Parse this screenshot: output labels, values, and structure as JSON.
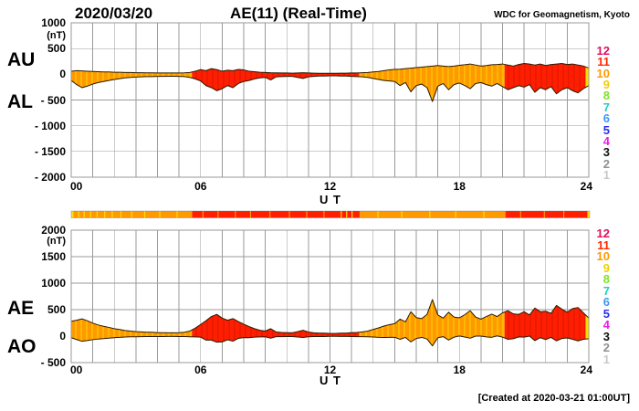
{
  "header": {
    "date": "2020/03/20",
    "title": "AE(11) (Real-Time)",
    "credit": "WDC for Geomagnetism, Kyoto"
  },
  "footer": {
    "created_note": "[Created at 2020-03-21 01:00UT]"
  },
  "palette": {
    "orange": "#ff9900",
    "red": "#ff1e00",
    "yellow": "#ffdf00",
    "orange_streak": "#ffd800",
    "red_streak": "#d81500",
    "outline": "#2b1a00",
    "grid": "#9a9a9a",
    "text": "#000000"
  },
  "legend_station_counts": {
    "entries": [
      {
        "label": "12",
        "color": "#e0105f"
      },
      {
        "label": "11",
        "color": "#ff2a00"
      },
      {
        "label": "10",
        "color": "#ff9900"
      },
      {
        "label": "9",
        "color": "#f0d000"
      },
      {
        "label": "8",
        "color": "#7de32b"
      },
      {
        "label": "7",
        "color": "#1ecfc0"
      },
      {
        "label": "6",
        "color": "#3b97f5"
      },
      {
        "label": "5",
        "color": "#2b2bf0"
      },
      {
        "label": "4",
        "color": "#e81ee8"
      },
      {
        "label": "3",
        "color": "#101010"
      },
      {
        "label": "2",
        "color": "#909090"
      },
      {
        "label": "1",
        "color": "#c8c8c8"
      }
    ]
  },
  "top_panel": {
    "side_labels": [
      "AU",
      "AL"
    ],
    "unit": "(nT)",
    "xlabel": "U T",
    "yticks": [
      {
        "label": "1000",
        "value": 1000
      },
      {
        "label": "500",
        "value": 500
      },
      {
        "label": "0",
        "value": 0
      },
      {
        "label": "- 500",
        "value": -500
      },
      {
        "label": "- 1000",
        "value": -1000
      },
      {
        "label": "- 1500",
        "value": -1500
      },
      {
        "label": "- 2000",
        "value": -2000
      }
    ],
    "xticks": [
      {
        "label": "00",
        "hour": 0
      },
      {
        "label": "06",
        "hour": 6
      },
      {
        "label": "12",
        "hour": 12
      },
      {
        "label": "18",
        "hour": 18
      },
      {
        "label": "24",
        "hour": 24
      }
    ]
  },
  "bottom_panel": {
    "side_labels": [
      "AE",
      "AO"
    ],
    "unit": "(nT)",
    "xlabel": "U T",
    "yticks": [
      {
        "label": "2000",
        "value": 2000
      },
      {
        "label": "1500",
        "value": 1500
      },
      {
        "label": "1000",
        "value": 1000
      },
      {
        "label": "500",
        "value": 500
      },
      {
        "label": "0",
        "value": 0
      },
      {
        "label": "- 500",
        "value": -500
      }
    ],
    "xticks": [
      {
        "label": "00",
        "hour": 0
      },
      {
        "label": "06",
        "hour": 6
      },
      {
        "label": "12",
        "hour": 12
      },
      {
        "label": "18",
        "hour": 18
      },
      {
        "label": "24",
        "hour": 24
      }
    ]
  },
  "chart_data": [
    {
      "type": "area",
      "name": "AU-AL",
      "xlabel": "U T",
      "ylabel": "(nT)",
      "ylim": [
        -2000,
        1000
      ],
      "x": {
        "start": 0,
        "step": 0.25,
        "count": 97,
        "unit": "hour"
      },
      "series": [
        {
          "name": "AU",
          "values": [
            60,
            70,
            65,
            60,
            55,
            50,
            45,
            45,
            40,
            40,
            35,
            35,
            30,
            30,
            28,
            28,
            25,
            25,
            25,
            25,
            25,
            28,
            35,
            60,
            90,
            70,
            110,
            90,
            60,
            80,
            70,
            95,
            85,
            60,
            50,
            40,
            35,
            30,
            28,
            25,
            25,
            22,
            25,
            30,
            25,
            22,
            20,
            20,
            20,
            20,
            22,
            22,
            25,
            25,
            30,
            35,
            45,
            55,
            70,
            85,
            95,
            100,
            110,
            120,
            130,
            140,
            150,
            160,
            170,
            160,
            150,
            160,
            175,
            185,
            200,
            180,
            160,
            170,
            185,
            190,
            200,
            180,
            160,
            190,
            210,
            200,
            180,
            200,
            170,
            190,
            200,
            210,
            190,
            200,
            180,
            160,
            120
          ]
        },
        {
          "name": "AL",
          "values": [
            -120,
            -200,
            -260,
            -230,
            -190,
            -160,
            -140,
            -120,
            -100,
            -85,
            -70,
            -60,
            -55,
            -50,
            -45,
            -45,
            -40,
            -40,
            -38,
            -38,
            -40,
            -45,
            -60,
            -90,
            -130,
            -220,
            -260,
            -320,
            -280,
            -220,
            -260,
            -180,
            -140,
            -120,
            -90,
            -70,
            -60,
            -110,
            -50,
            -45,
            -40,
            -40,
            -60,
            -80,
            -50,
            -40,
            -35,
            -35,
            -30,
            -30,
            -35,
            -35,
            -40,
            -45,
            -50,
            -60,
            -80,
            -100,
            -120,
            -130,
            -140,
            -220,
            -160,
            -340,
            -220,
            -190,
            -260,
            -530,
            -230,
            -180,
            -300,
            -200,
            -170,
            -220,
            -280,
            -180,
            -160,
            -200,
            -230,
            -180,
            -240,
            -300,
            -260,
            -220,
            -250,
            -200,
            -350,
            -260,
            -300,
            -240,
            -380,
            -300,
            -260,
            -320,
            -360,
            -280,
            -220
          ]
        }
      ],
      "color_segments": [
        {
          "start": 0,
          "end": 5.6,
          "color": "orange"
        },
        {
          "start": 5.6,
          "end": 13.35,
          "color": "red"
        },
        {
          "start": 13.35,
          "end": 20.1,
          "color": "orange"
        },
        {
          "start": 20.1,
          "end": 23.85,
          "color": "red"
        },
        {
          "start": 23.85,
          "end": 24,
          "color": "yellow"
        }
      ]
    },
    {
      "type": "heatmap",
      "name": "station-count-bar",
      "segments": [
        {
          "start": 0,
          "end": 0.1,
          "color": "yellow"
        },
        {
          "start": 0.1,
          "end": 5.6,
          "color": "orange"
        },
        {
          "start": 5.6,
          "end": 13.35,
          "color": "red"
        },
        {
          "start": 13.35,
          "end": 20.1,
          "color": "orange"
        },
        {
          "start": 20.1,
          "end": 23.9,
          "color": "red"
        },
        {
          "start": 23.9,
          "end": 24,
          "color": "yellow"
        }
      ],
      "streaks": [
        {
          "t": 0.35,
          "color": "yellow"
        },
        {
          "t": 0.6,
          "color": "yellow"
        },
        {
          "t": 0.9,
          "color": "yellow"
        },
        {
          "t": 1.2,
          "color": "yellow"
        },
        {
          "t": 1.55,
          "color": "yellow"
        },
        {
          "t": 1.9,
          "color": "yellow"
        },
        {
          "t": 2.3,
          "color": "yellow"
        },
        {
          "t": 2.8,
          "color": "yellow"
        },
        {
          "t": 3.4,
          "color": "yellow"
        },
        {
          "t": 4.1,
          "color": "yellow"
        },
        {
          "t": 4.9,
          "color": "yellow"
        },
        {
          "t": 6.1,
          "color": "orange"
        },
        {
          "t": 6.8,
          "color": "orange"
        },
        {
          "t": 7.6,
          "color": "orange"
        },
        {
          "t": 8.3,
          "color": "orange"
        },
        {
          "t": 9.2,
          "color": "orange"
        },
        {
          "t": 10.1,
          "color": "orange"
        },
        {
          "t": 10.9,
          "color": "orange"
        },
        {
          "t": 11.7,
          "color": "orange"
        },
        {
          "t": 12.5,
          "color": "yellow"
        },
        {
          "t": 12.75,
          "color": "yellow"
        },
        {
          "t": 13.0,
          "color": "yellow"
        },
        {
          "t": 14.2,
          "color": "yellow"
        },
        {
          "t": 15.3,
          "color": "yellow"
        },
        {
          "t": 16.6,
          "color": "yellow"
        },
        {
          "t": 17.8,
          "color": "yellow"
        },
        {
          "t": 19.1,
          "color": "yellow"
        },
        {
          "t": 20.8,
          "color": "orange"
        },
        {
          "t": 21.9,
          "color": "orange"
        },
        {
          "t": 22.8,
          "color": "orange"
        }
      ]
    },
    {
      "type": "area",
      "name": "AE-AO",
      "xlabel": "U T",
      "ylabel": "(nT)",
      "ylim": [
        -500,
        2000
      ],
      "x": {
        "start": 0,
        "step": 0.25,
        "count": 97,
        "unit": "hour"
      },
      "series": [
        {
          "name": "AE",
          "values": [
            280,
            300,
            325,
            290,
            245,
            210,
            185,
            165,
            140,
            125,
            105,
            95,
            85,
            80,
            73,
            73,
            65,
            65,
            63,
            63,
            65,
            73,
            95,
            150,
            220,
            290,
            370,
            410,
            340,
            300,
            330,
            275,
            225,
            180,
            140,
            110,
            95,
            140,
            78,
            70,
            65,
            62,
            85,
            110,
            75,
            62,
            55,
            55,
            50,
            50,
            57,
            57,
            65,
            70,
            80,
            95,
            125,
            155,
            190,
            215,
            235,
            320,
            270,
            460,
            350,
            330,
            410,
            690,
            400,
            340,
            450,
            360,
            345,
            405,
            480,
            360,
            320,
            370,
            415,
            370,
            440,
            480,
            420,
            410,
            460,
            400,
            530,
            460,
            470,
            430,
            580,
            510,
            450,
            520,
            540,
            440,
            340
          ]
        },
        {
          "name": "AO",
          "values": [
            -30,
            -65,
            -98,
            -85,
            -68,
            -55,
            -48,
            -38,
            -30,
            -23,
            -18,
            -13,
            -13,
            -10,
            -9,
            -9,
            -8,
            -8,
            -7,
            -7,
            -8,
            -9,
            -13,
            -15,
            -20,
            -75,
            -75,
            -115,
            -110,
            -70,
            -95,
            -43,
            -28,
            -30,
            -20,
            -15,
            -13,
            -40,
            -11,
            -10,
            -8,
            -9,
            -18,
            -25,
            -13,
            -9,
            -8,
            -8,
            -5,
            -5,
            -7,
            -7,
            -8,
            -10,
            -10,
            -13,
            -18,
            -23,
            -25,
            -23,
            -23,
            -60,
            -25,
            -110,
            -45,
            -25,
            -55,
            -185,
            -30,
            -10,
            -75,
            -20,
            3,
            -18,
            -40,
            0,
            0,
            -15,
            -23,
            5,
            -20,
            -60,
            -50,
            -15,
            -20,
            0,
            -85,
            -30,
            -65,
            -25,
            -90,
            -45,
            -35,
            -60,
            -90,
            -60,
            -50
          ]
        }
      ],
      "color_segments": [
        {
          "start": 0,
          "end": 5.6,
          "color": "orange"
        },
        {
          "start": 5.6,
          "end": 13.35,
          "color": "red"
        },
        {
          "start": 13.35,
          "end": 20.1,
          "color": "orange"
        },
        {
          "start": 20.1,
          "end": 23.85,
          "color": "red"
        },
        {
          "start": 23.85,
          "end": 24,
          "color": "yellow"
        }
      ]
    }
  ]
}
